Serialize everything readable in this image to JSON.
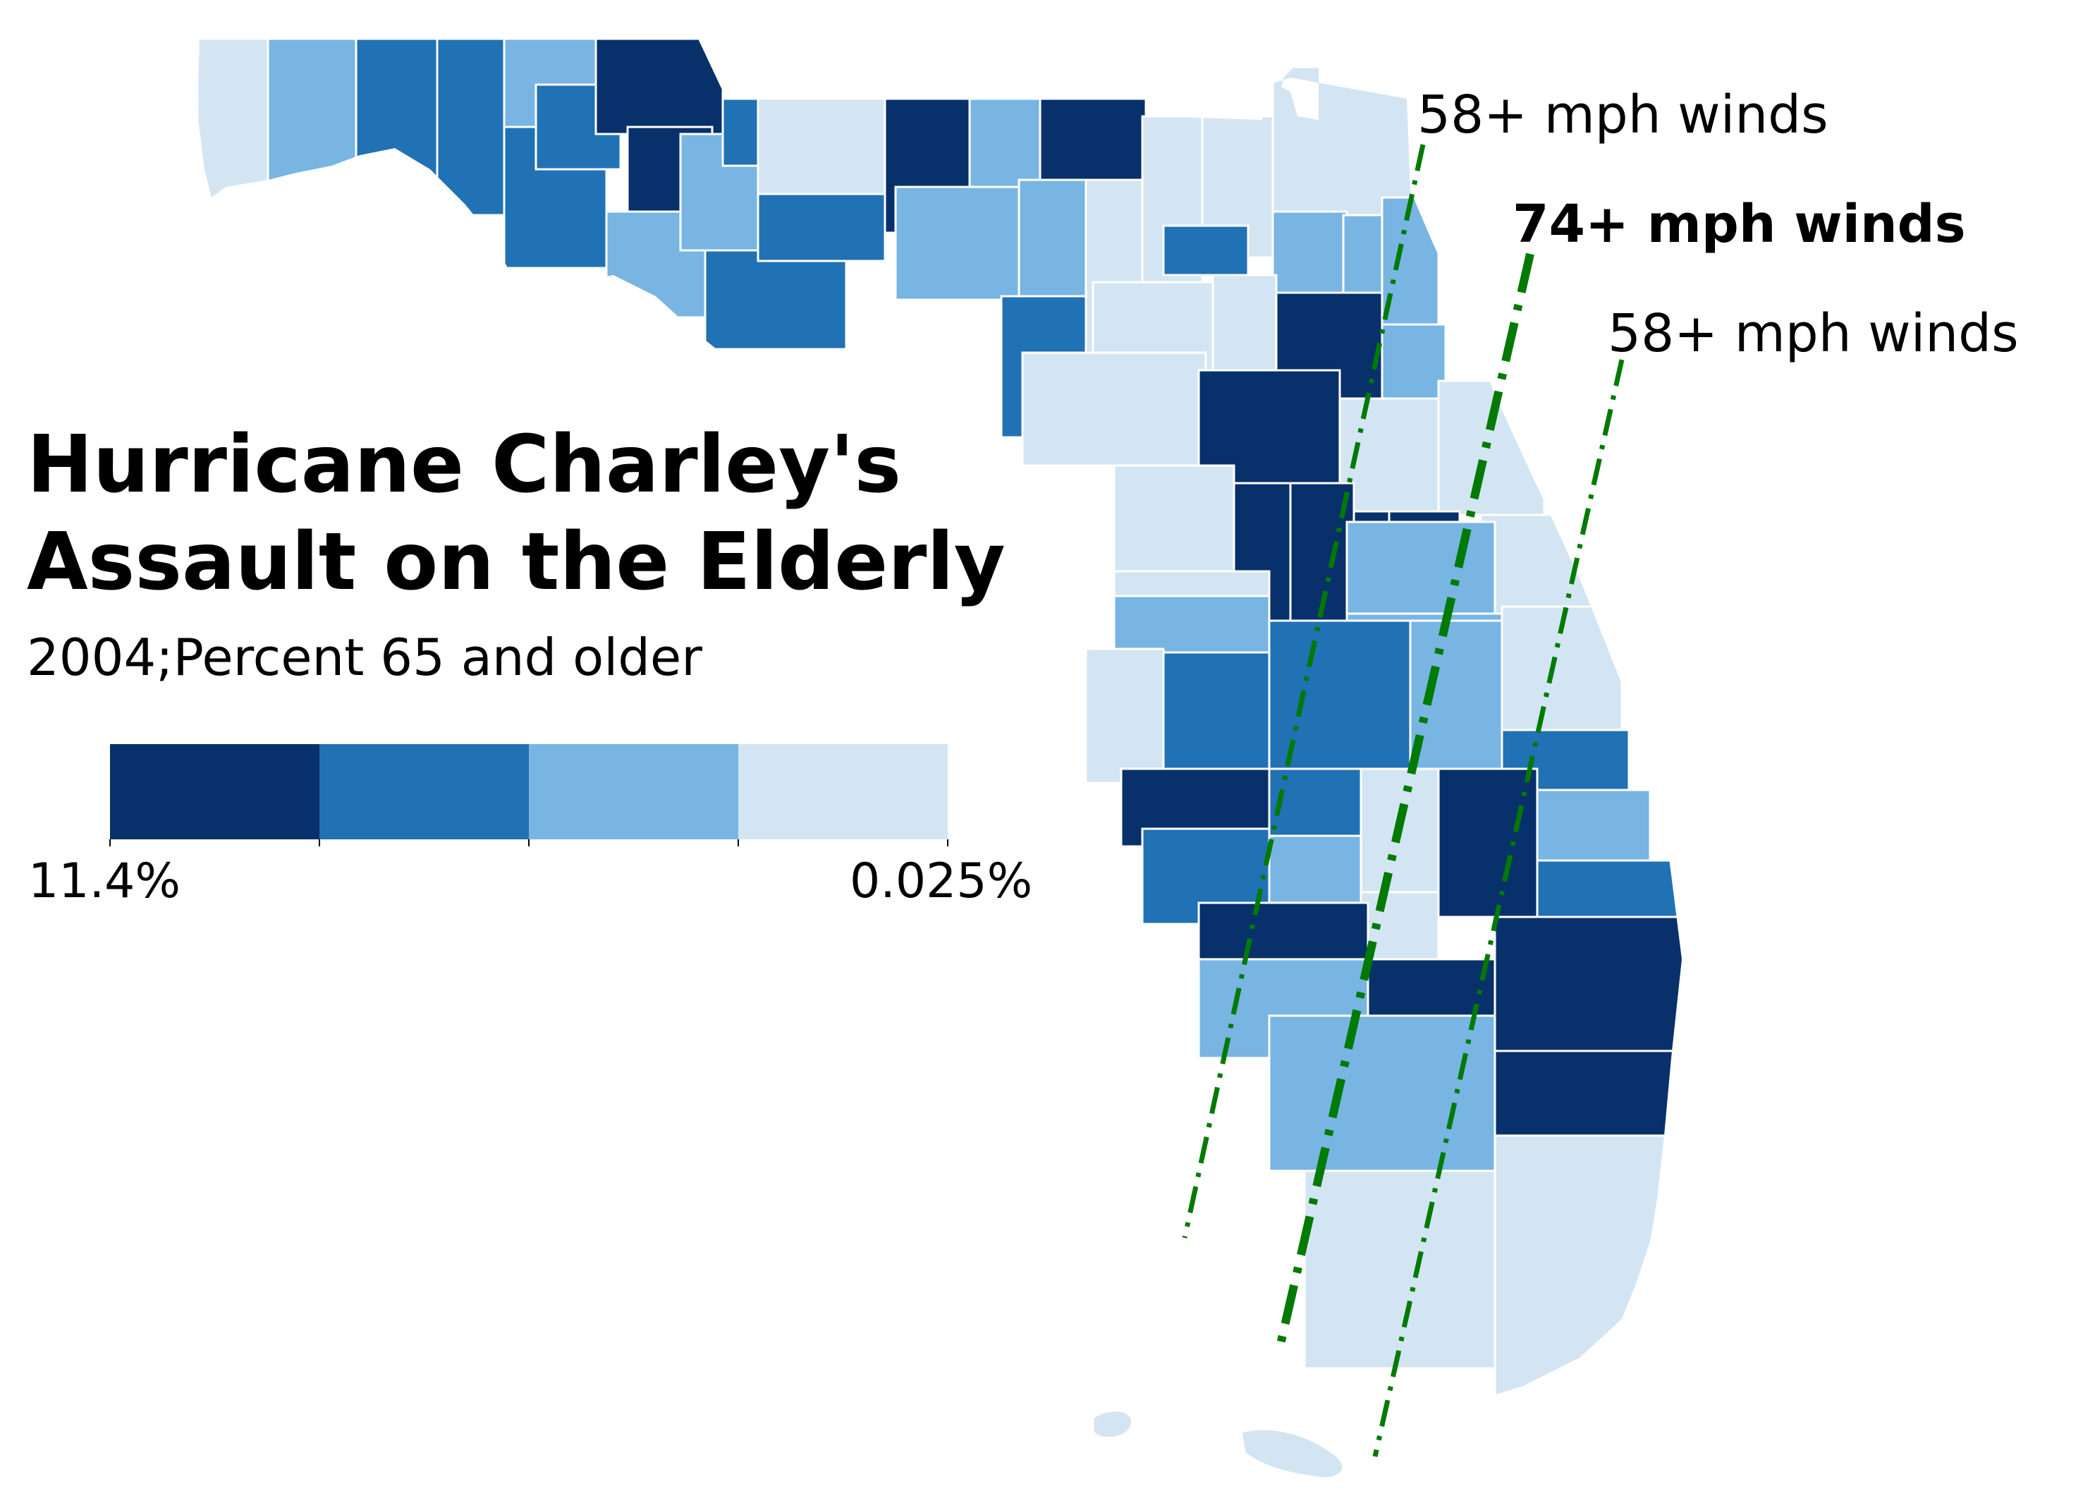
{
  "title": "Hurricane Charley's\nAssault on the Elderly",
  "subtitle": "2004;Percent 65 and older",
  "legend": {
    "colors": [
      "#08306b",
      "#2171b5",
      "#78b5e3",
      "#d3e5f2"
    ],
    "max_label": "11.4%",
    "min_label": "0.025%"
  },
  "wind_bands": {
    "outer_west": "58+ mph winds",
    "center": "74+ mph winds",
    "outer_east": "58+ mph winds",
    "line_color": "#007a00"
  },
  "colors": {
    "county_border": "#ffffff",
    "background": "#ffffff"
  }
}
